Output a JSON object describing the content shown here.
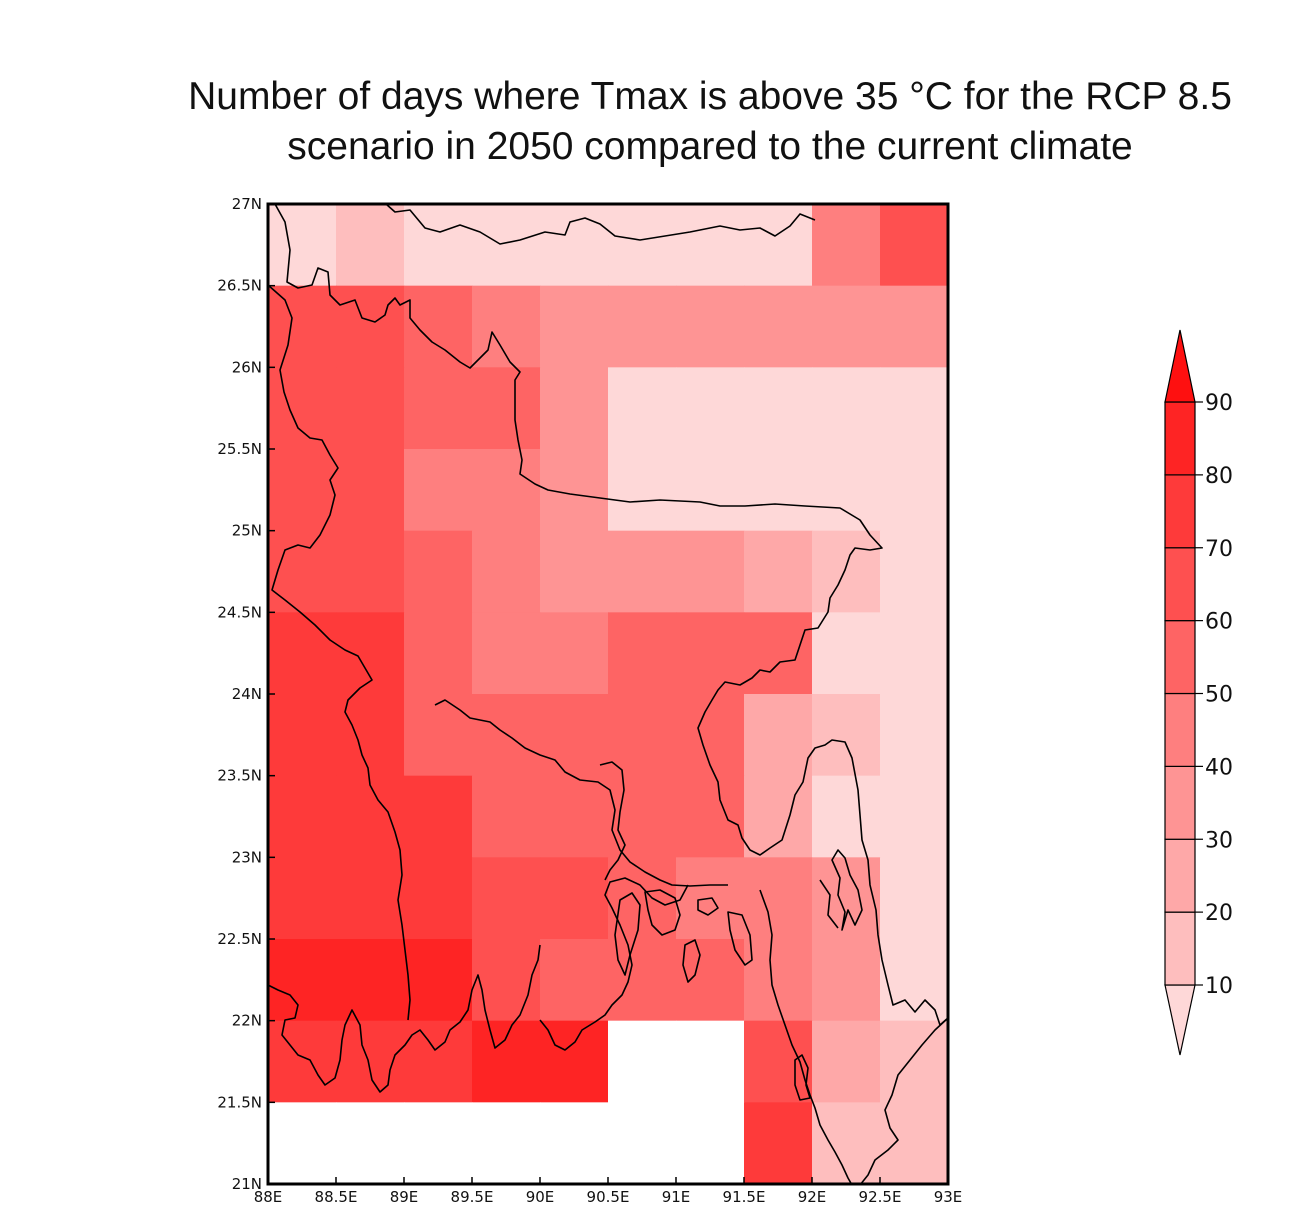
{
  "title": {
    "line1": "Number of days where Tmax is above 35 °C for the RCP 8.5",
    "line2": "scenario in 2050 compared to the current climate"
  },
  "map": {
    "lon_range": [
      88,
      93
    ],
    "lat_range": [
      21,
      27
    ],
    "cell_size_deg": 0.5,
    "x_tick_labels": [
      "88E",
      "88.5E",
      "89E",
      "89.5E",
      "90E",
      "90.5E",
      "91E",
      "91.5E",
      "92E",
      "92.5E",
      "93E"
    ],
    "y_tick_labels": [
      "27N",
      "26.5N",
      "26N",
      "25.5N",
      "25N",
      "24.5N",
      "24N",
      "23.5N",
      "23N",
      "22.5N",
      "22N",
      "21.5N",
      "21N"
    ]
  },
  "colorbar": {
    "levels": [
      10,
      20,
      30,
      40,
      50,
      60,
      70,
      80,
      90
    ],
    "labels": [
      "10",
      "20",
      "30",
      "40",
      "50",
      "60",
      "70",
      "80",
      "90"
    ],
    "colors": [
      "#fed8d8",
      "#febebe",
      "#fea8a8",
      "#fe9494",
      "#fe7f7f",
      "#fe6464",
      "#fe5050",
      "#fe3a3a",
      "#fe2424",
      "#fe1010"
    ]
  },
  "chart_data": {
    "type": "heatmap",
    "title": "Number of days where Tmax is above 35 °C for the RCP 8.5 scenario in 2050 compared to the current climate",
    "x_label": "",
    "y_label": "",
    "lons": [
      88.0,
      88.5,
      89.0,
      89.5,
      90.0,
      90.5,
      91.0,
      91.5,
      92.0,
      92.5
    ],
    "lats_top_to_bottom": [
      26.5,
      26.0,
      25.5,
      25.0,
      24.5,
      24.0,
      23.5,
      23.0,
      22.5,
      22.0,
      21.5,
      21.0
    ],
    "color_index_grid": [
      [
        0,
        1,
        0,
        0,
        0,
        0,
        0,
        0,
        4,
        6
      ],
      [
        6,
        6,
        5,
        4,
        3,
        3,
        3,
        3,
        3,
        3
      ],
      [
        6,
        6,
        5,
        5,
        3,
        0,
        0,
        0,
        0,
        0
      ],
      [
        6,
        6,
        4,
        4,
        3,
        0,
        0,
        0,
        0,
        0
      ],
      [
        6,
        6,
        5,
        4,
        3,
        3,
        3,
        2,
        1,
        0
      ],
      [
        7,
        7,
        5,
        4,
        4,
        5,
        5,
        5,
        0,
        0
      ],
      [
        7,
        7,
        5,
        5,
        5,
        5,
        5,
        2,
        1,
        0
      ],
      [
        7,
        7,
        7,
        5,
        5,
        5,
        5,
        2,
        0,
        0
      ],
      [
        7,
        7,
        7,
        6,
        6,
        5,
        4,
        4,
        3,
        0
      ],
      [
        8,
        8,
        8,
        6,
        5,
        5,
        5,
        4,
        3,
        0
      ],
      [
        7,
        7,
        7,
        8,
        8,
        null,
        null,
        6,
        2,
        1
      ],
      [
        null,
        null,
        null,
        null,
        null,
        null,
        null,
        7,
        1,
        1
      ]
    ]
  }
}
